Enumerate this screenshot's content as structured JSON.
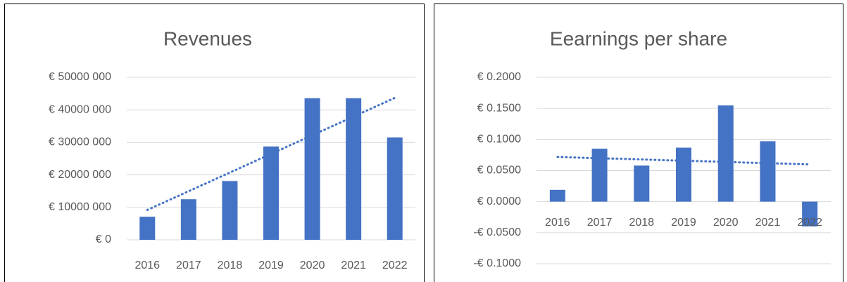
{
  "chart_data": [
    {
      "type": "bar",
      "title": "Revenues",
      "categories": [
        "2016",
        "2017",
        "2018",
        "2019",
        "2020",
        "2021",
        "2022"
      ],
      "values": [
        7100000,
        12500000,
        18100000,
        28700000,
        43600000,
        43600000,
        31500000
      ],
      "color": "#4472c4",
      "trendline": "linear",
      "ylim": [
        0,
        50000000
      ],
      "yticks": [
        {
          "value": 0,
          "label": "€ 0"
        },
        {
          "value": 10000000,
          "label": "€ 10000 000"
        },
        {
          "value": 20000000,
          "label": "€ 20000 000"
        },
        {
          "value": 30000000,
          "label": "€ 30000 000"
        },
        {
          "value": 40000000,
          "label": "€ 40000 000"
        },
        {
          "value": 50000000,
          "label": "€ 50000 000"
        }
      ],
      "grid": true
    },
    {
      "type": "bar",
      "title": "Eearnings per share",
      "categories": [
        "2016",
        "2017",
        "2018",
        "2019",
        "2020",
        "2021",
        "2022"
      ],
      "values": [
        0.019,
        0.085,
        0.058,
        0.087,
        0.155,
        0.097,
        -0.04
      ],
      "color": "#4472c4",
      "trendline": "linear",
      "ylim": [
        -0.1,
        0.2
      ],
      "yticks": [
        {
          "value": -0.1,
          "label": "-€ 0.1000"
        },
        {
          "value": -0.05,
          "label": "-€ 0.0500"
        },
        {
          "value": 0,
          "label": "€ 0.0000"
        },
        {
          "value": 0.05,
          "label": "€ 0.0500"
        },
        {
          "value": 0.1,
          "label": "€ 0.1000"
        },
        {
          "value": 0.15,
          "label": "€ 0.1500"
        },
        {
          "value": 0.2,
          "label": "€ 0.2000"
        }
      ],
      "grid": true
    }
  ]
}
